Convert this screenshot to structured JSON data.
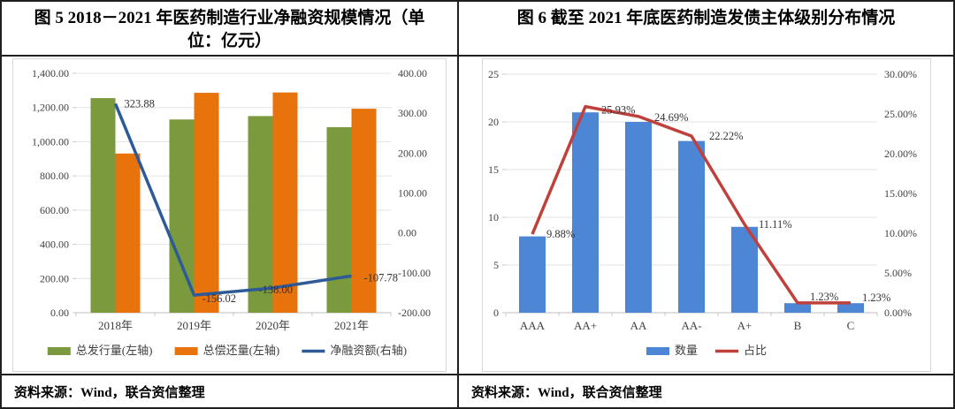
{
  "figures": [
    {
      "title": "图 5  2018－2021 年医药制造行业净融资规模情况（单位：亿元）",
      "source": "资料来源：Wind，联合资信整理"
    },
    {
      "title": "图 6  截至 2021 年底医药制造发债主体级别分布情况",
      "source": "资料来源：Wind，联合资信整理"
    }
  ],
  "chart_data": [
    {
      "type": "bar",
      "subtype": "combo-bar-line-dual-axis",
      "title": "2018-2021 年医药制造行业净融资规模情况（亿元）",
      "categories": [
        "2018年",
        "2019年",
        "2020年",
        "2021年"
      ],
      "series": [
        {
          "name": "总发行量(左轴)",
          "type": "bar",
          "axis": "left",
          "color": "#7a9a3d",
          "values": [
            1255,
            1130,
            1150,
            1085
          ]
        },
        {
          "name": "总偿还量(左轴)",
          "type": "bar",
          "axis": "left",
          "color": "#e8720c",
          "values": [
            931,
            1286,
            1288,
            1193
          ]
        },
        {
          "name": "净融资额(右轴)",
          "type": "line",
          "axis": "right",
          "color": "#2e5b97",
          "values": [
            323.88,
            -156.02,
            -138.0,
            -107.78
          ],
          "labels": [
            "323.88",
            "-156.02",
            "-138.00",
            "-107.78"
          ],
          "label_dx": [
            10,
            9,
            -16,
            14
          ],
          "label_dy": [
            4,
            8,
            6,
            6
          ]
        }
      ],
      "left_axis": {
        "min": 0,
        "max": 1400,
        "ticks": [
          "0.00",
          "200.00",
          "400.00",
          "600.00",
          "800.00",
          "1,000.00",
          "1,200.00",
          "1,400.00"
        ]
      },
      "right_axis": {
        "min": -200,
        "max": 400,
        "ticks": [
          "-200.00",
          "-100.00",
          "0.00",
          "100.00",
          "200.00",
          "300.00",
          "400.00"
        ]
      },
      "grid": true,
      "legend_position": "bottom"
    },
    {
      "type": "bar",
      "subtype": "combo-bar-line-dual-axis",
      "title": "截至 2021 年底医药制造发债主体级别分布情况",
      "categories": [
        "AAA",
        "AA+",
        "AA",
        "AA-",
        "A+",
        "B",
        "C"
      ],
      "series": [
        {
          "name": "数量",
          "type": "bar",
          "axis": "left",
          "color": "#4e86d6",
          "values": [
            8,
            21,
            20,
            18,
            9,
            1,
            1
          ]
        },
        {
          "name": "占比",
          "type": "line",
          "axis": "right",
          "color": "#c0403c",
          "values": [
            9.88,
            25.93,
            24.69,
            22.22,
            11.11,
            1.23,
            1.23
          ],
          "labels": [
            "9.88%",
            "25.93%",
            "24.69%",
            "22.22%",
            "11.11%",
            "1.23%",
            "1.23%"
          ],
          "label_dx": [
            16,
            18,
            18,
            20,
            16,
            14,
            13
          ],
          "label_dy": [
            4,
            8,
            5,
            4,
            4,
            -3,
            -2
          ]
        }
      ],
      "left_axis": {
        "min": 0,
        "max": 25,
        "ticks": [
          "0",
          "5",
          "10",
          "15",
          "20",
          "25"
        ]
      },
      "right_axis": {
        "min": 0,
        "max": 30,
        "ticks": [
          "0.00%",
          "5.00%",
          "10.00%",
          "15.00%",
          "20.00%",
          "25.00%",
          "30.00%"
        ]
      },
      "grid": true,
      "legend_position": "bottom"
    }
  ],
  "colors": {
    "issuance_green": "#7a9a3d",
    "repayment_orange": "#e8720c",
    "net_line_blue": "#2e5b97",
    "count_blue": "#4e86d6",
    "ratio_red": "#c0403c",
    "gridline": "#e3e3e3",
    "axis_line": "#bfbfbf"
  }
}
